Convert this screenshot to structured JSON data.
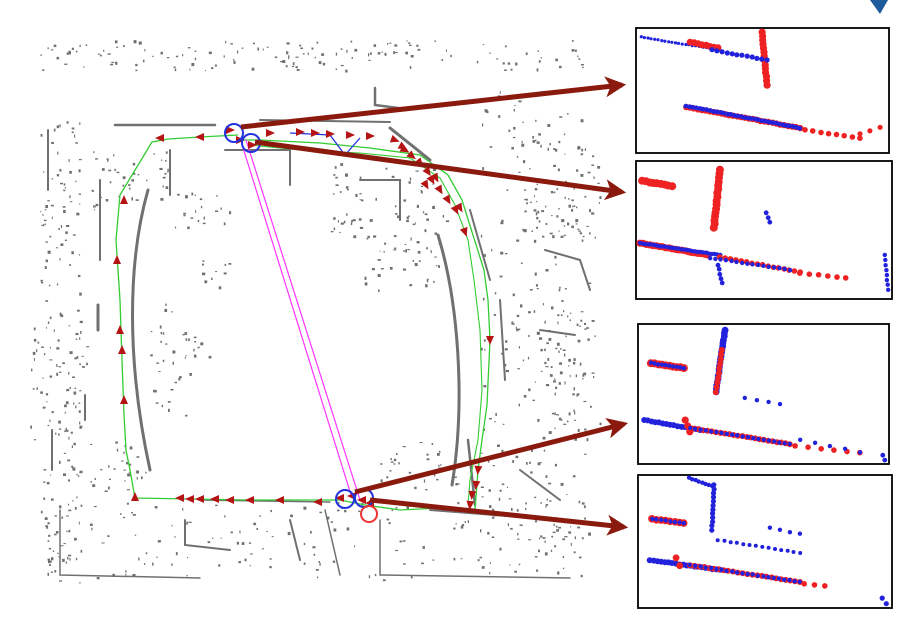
{
  "colors": {
    "background": "#ffffff",
    "map_points": "#6b6b6b",
    "trajectory": "#33cc33",
    "pose_arrow": "#b41414",
    "loop_edge": "#ff33ff",
    "blue_points": "#2222dd",
    "red_points": "#ee2222",
    "callout_arrow": "#8b1a0e",
    "panel_border": "#000000",
    "corner_mark": "#1f5a9a"
  },
  "icons": {
    "loop_marker": "circle-marker-icon",
    "pose": "triangle-arrow-icon",
    "callout": "callout-arrow-icon"
  },
  "panels": [
    {
      "id": "top-left-loop"
    },
    {
      "id": "top-right-loop"
    },
    {
      "id": "bottom-left-loop"
    },
    {
      "id": "bottom-right-loop"
    }
  ]
}
